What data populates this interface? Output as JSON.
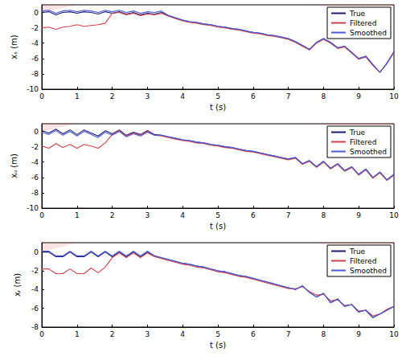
{
  "chart_data": [
    {
      "type": "line",
      "xlabel": "t (s)",
      "ylabel": "xₛ (m)",
      "legend": "upper right",
      "grid": false,
      "xlim": [
        0,
        10
      ],
      "xticks": [
        0,
        1,
        2,
        3,
        4,
        5,
        6,
        7,
        8,
        9,
        10
      ],
      "ylim": [
        -10,
        1
      ],
      "yticks": [
        -10,
        -8,
        -6,
        -4,
        -2,
        0
      ],
      "x": [
        0,
        0.2,
        0.4,
        0.6,
        0.8,
        1,
        1.2,
        1.4,
        1.6,
        1.8,
        2,
        2.2,
        2.4,
        2.6,
        2.8,
        3,
        3.2,
        3.4,
        3.6,
        3.8,
        4,
        4.2,
        4.4,
        4.6,
        4.8,
        5,
        5.2,
        5.4,
        5.6,
        5.8,
        6,
        6.2,
        6.4,
        6.6,
        6.8,
        7,
        7.2,
        7.4,
        7.6,
        7.8,
        8,
        8.2,
        8.4,
        8.6,
        8.8,
        9,
        9.2,
        9.4,
        9.6,
        9.8,
        10
      ],
      "series": [
        {
          "name": "True",
          "color": "#1a1a6e",
          "values": [
            0.0,
            0.1,
            -0.3,
            0.0,
            0.1,
            -0.1,
            0.1,
            0.0,
            -0.2,
            0.1,
            -0.1,
            0.1,
            -0.2,
            0.0,
            -0.3,
            -0.1,
            -0.2,
            0.0,
            -0.4,
            -0.7,
            -1.0,
            -1.2,
            -1.3,
            -1.5,
            -1.6,
            -1.8,
            -1.9,
            -2.1,
            -2.2,
            -2.4,
            -2.6,
            -2.7,
            -2.9,
            -3.0,
            -3.2,
            -3.4,
            -3.8,
            -4.3,
            -4.8,
            -3.9,
            -3.4,
            -3.9,
            -4.6,
            -4.4,
            -5.2,
            -6.0,
            -5.7,
            -6.8,
            -7.8,
            -6.6,
            -5.1
          ]
        },
        {
          "name": "Filtered",
          "color": "#d0404a",
          "values": [
            -2.0,
            -1.9,
            -2.2,
            -1.9,
            -1.8,
            -1.6,
            -1.8,
            -1.7,
            -1.6,
            -1.4,
            -0.1,
            0.0,
            -0.3,
            -0.1,
            -0.4,
            -0.2,
            -0.3,
            -0.1,
            -0.5,
            -0.8,
            -1.1,
            -1.3,
            -1.4,
            -1.6,
            -1.7,
            -1.9,
            -2.0,
            -2.2,
            -2.3,
            -2.5,
            -2.7,
            -2.8,
            -3.0,
            -3.1,
            -3.3,
            -3.5,
            -3.9,
            -4.4,
            -4.9,
            -4.0,
            -3.5,
            -4.0,
            -4.7,
            -4.5,
            -5.3,
            -6.1,
            -5.8,
            -6.9,
            -7.8,
            -6.7,
            -5.2
          ],
          "band": [
            0.6,
            0.6,
            0.6,
            0.6,
            0.6,
            0.6,
            0.6,
            0.6,
            0.6,
            0.6,
            0.6,
            0.6,
            0.6,
            0.6,
            0.6,
            0.6,
            0.6,
            0.6,
            0.6,
            0.6,
            0.4,
            0.4,
            0.4,
            0.4,
            0.4,
            0.4,
            0.4,
            0.4,
            0.4,
            0.4,
            0.4,
            0.4,
            0.4,
            0.4,
            0.4,
            0.4,
            0.5,
            0.5,
            0.5,
            0.5,
            0.5,
            0.5,
            0.5,
            0.5,
            0.5,
            0.5,
            0.5,
            0.5,
            0.5,
            0.5,
            0.5
          ]
        },
        {
          "name": "Smoothed",
          "color": "#4a5ad8",
          "values": [
            0.2,
            0.3,
            -0.1,
            0.2,
            0.3,
            0.1,
            0.3,
            0.2,
            0.0,
            0.3,
            0.1,
            0.3,
            0.0,
            0.2,
            -0.1,
            0.1,
            0.0,
            0.2,
            -0.4,
            -0.7,
            -1.0,
            -1.2,
            -1.3,
            -1.5,
            -1.6,
            -1.8,
            -1.9,
            -2.1,
            -2.2,
            -2.4,
            -2.6,
            -2.7,
            -2.9,
            -3.0,
            -3.2,
            -3.4,
            -3.8,
            -4.3,
            -4.8,
            -3.9,
            -3.4,
            -3.9,
            -4.6,
            -4.4,
            -5.2,
            -6.0,
            -5.7,
            -6.8,
            -7.8,
            -6.6,
            -5.1
          ]
        }
      ]
    },
    {
      "type": "line",
      "xlabel": "t (s)",
      "ylabel": "xᵤ (m)",
      "legend": "upper right",
      "grid": false,
      "xlim": [
        0,
        10
      ],
      "xticks": [
        0,
        1,
        2,
        3,
        4,
        5,
        6,
        7,
        8,
        9,
        10
      ],
      "ylim": [
        -10,
        1
      ],
      "yticks": [
        -10,
        -8,
        -6,
        -4,
        -2,
        0
      ],
      "x": [
        0,
        0.2,
        0.4,
        0.6,
        0.8,
        1,
        1.2,
        1.4,
        1.6,
        1.8,
        2,
        2.2,
        2.4,
        2.6,
        2.8,
        3,
        3.2,
        3.4,
        3.6,
        3.8,
        4,
        4.2,
        4.4,
        4.6,
        4.8,
        5,
        5.2,
        5.4,
        5.6,
        5.8,
        6,
        6.2,
        6.4,
        6.6,
        6.8,
        7,
        7.2,
        7.4,
        7.6,
        7.8,
        8,
        8.2,
        8.4,
        8.6,
        8.8,
        9,
        9.2,
        9.4,
        9.6,
        9.8,
        10
      ],
      "series": [
        {
          "name": "True",
          "color": "#1a1a6e",
          "values": [
            0.1,
            -0.2,
            0.3,
            -0.3,
            0.2,
            -0.4,
            0.2,
            -0.2,
            -0.6,
            0.1,
            -0.3,
            0.2,
            -0.5,
            -0.1,
            -0.4,
            0.1,
            -0.4,
            -0.5,
            -0.7,
            -0.9,
            -1.1,
            -1.2,
            -1.4,
            -1.5,
            -1.7,
            -1.8,
            -2.0,
            -2.1,
            -2.3,
            -2.5,
            -2.6,
            -2.8,
            -3.0,
            -3.2,
            -3.4,
            -3.6,
            -3.4,
            -4.2,
            -3.8,
            -4.6,
            -3.9,
            -4.8,
            -4.2,
            -5.1,
            -4.6,
            -5.6,
            -4.9,
            -6.0,
            -5.3,
            -6.3,
            -5.6
          ]
        },
        {
          "name": "Filtered",
          "color": "#d0404a",
          "values": [
            -1.9,
            -2.2,
            -1.6,
            -2.1,
            -1.7,
            -2.2,
            -1.7,
            -1.9,
            -2.2,
            -1.5,
            -0.4,
            0.1,
            -0.6,
            -0.2,
            -0.5,
            0.0,
            -0.5,
            -0.6,
            -0.8,
            -1.0,
            -1.2,
            -1.3,
            -1.5,
            -1.6,
            -1.8,
            -1.9,
            -2.1,
            -2.2,
            -2.4,
            -2.6,
            -2.7,
            -2.9,
            -3.1,
            -3.3,
            -3.5,
            -3.7,
            -3.5,
            -4.3,
            -3.9,
            -4.7,
            -4.0,
            -4.9,
            -4.3,
            -5.2,
            -4.7,
            -5.7,
            -5.0,
            -6.1,
            -5.4,
            -6.4,
            -5.7
          ],
          "band": [
            0.6,
            0.6,
            0.6,
            0.6,
            0.6,
            0.6,
            0.6,
            0.6,
            0.6,
            0.6,
            0.6,
            0.6,
            0.6,
            0.6,
            0.6,
            0.6,
            0.6,
            0.6,
            0.6,
            0.6,
            0.4,
            0.4,
            0.4,
            0.4,
            0.4,
            0.4,
            0.4,
            0.4,
            0.4,
            0.4,
            0.4,
            0.4,
            0.4,
            0.4,
            0.4,
            0.4,
            0.5,
            0.5,
            0.5,
            0.5,
            0.5,
            0.5,
            0.5,
            0.5,
            0.5,
            0.5,
            0.5,
            0.5,
            0.5,
            0.5,
            0.5
          ]
        },
        {
          "name": "Smoothed",
          "color": "#4a5ad8",
          "values": [
            -0.1,
            -0.4,
            0.1,
            -0.5,
            0.0,
            -0.6,
            0.0,
            -0.4,
            -0.8,
            -0.1,
            -0.5,
            0.0,
            -0.7,
            -0.3,
            -0.6,
            -0.1,
            -0.5,
            -0.5,
            -0.7,
            -0.9,
            -1.1,
            -1.2,
            -1.4,
            -1.5,
            -1.7,
            -1.8,
            -2.0,
            -2.1,
            -2.3,
            -2.5,
            -2.6,
            -2.8,
            -3.0,
            -3.2,
            -3.4,
            -3.6,
            -3.4,
            -4.2,
            -3.8,
            -4.6,
            -3.9,
            -4.8,
            -4.2,
            -5.1,
            -4.6,
            -5.6,
            -4.9,
            -6.0,
            -5.3,
            -6.3,
            -5.6
          ]
        }
      ]
    },
    {
      "type": "line",
      "xlabel": "t (s)",
      "ylabel": "xᵣ (m)",
      "legend": "upper right",
      "grid": false,
      "xlim": [
        0,
        10
      ],
      "xticks": [
        0,
        1,
        2,
        3,
        4,
        5,
        6,
        7,
        8,
        9,
        10
      ],
      "ylim": [
        -8,
        1
      ],
      "yticks": [
        -8,
        -6,
        -4,
        -2,
        0
      ],
      "x": [
        0,
        0.2,
        0.4,
        0.6,
        0.8,
        1,
        1.2,
        1.4,
        1.6,
        1.8,
        2,
        2.2,
        2.4,
        2.6,
        2.8,
        3,
        3.2,
        3.4,
        3.6,
        3.8,
        4,
        4.2,
        4.4,
        4.6,
        4.8,
        5,
        5.2,
        5.4,
        5.6,
        5.8,
        6,
        6.2,
        6.4,
        6.6,
        6.8,
        7,
        7.2,
        7.4,
        7.6,
        7.8,
        8,
        8.2,
        8.4,
        8.6,
        8.8,
        9,
        9.2,
        9.4,
        9.6,
        9.8,
        10
      ],
      "series": [
        {
          "name": "True",
          "color": "#1a1a6e",
          "values": [
            0.0,
            0.0,
            -0.5,
            -0.5,
            0.0,
            -0.5,
            -0.5,
            0.0,
            -0.5,
            0.0,
            -0.5,
            0.0,
            -0.5,
            0.0,
            -0.5,
            0.0,
            -0.4,
            -0.6,
            -0.8,
            -1.0,
            -1.2,
            -1.3,
            -1.5,
            -1.6,
            -1.8,
            -2.0,
            -2.1,
            -2.3,
            -2.5,
            -2.6,
            -2.8,
            -3.0,
            -3.2,
            -3.4,
            -3.6,
            -3.8,
            -4.0,
            -3.6,
            -4.3,
            -4.8,
            -4.4,
            -5.4,
            -5.0,
            -5.8,
            -5.6,
            -6.4,
            -6.2,
            -7.0,
            -6.6,
            -6.2,
            -5.8
          ]
        },
        {
          "name": "Filtered",
          "color": "#d0404a",
          "values": [
            -1.8,
            -1.8,
            -2.3,
            -2.3,
            -1.8,
            -2.3,
            -2.3,
            -1.7,
            -2.2,
            -1.6,
            -0.6,
            -0.1,
            -0.6,
            -0.1,
            -0.6,
            -0.1,
            -0.5,
            -0.7,
            -0.9,
            -1.1,
            -1.3,
            -1.4,
            -1.6,
            -1.7,
            -1.9,
            -2.1,
            -2.2,
            -2.4,
            -2.6,
            -2.7,
            -2.9,
            -3.1,
            -3.3,
            -3.5,
            -3.7,
            -3.9,
            -3.9,
            -3.7,
            -4.2,
            -4.6,
            -4.5,
            -5.2,
            -5.1,
            -5.7,
            -5.6,
            -6.3,
            -6.2,
            -6.8,
            -6.6,
            -6.1,
            -5.8
          ],
          "band": [
            0.6,
            0.6,
            0.6,
            0.6,
            0.6,
            0.6,
            0.6,
            0.6,
            0.6,
            0.6,
            0.6,
            0.6,
            0.6,
            0.6,
            0.6,
            0.6,
            0.6,
            0.6,
            0.6,
            0.6,
            0.4,
            0.4,
            0.4,
            0.4,
            0.4,
            0.4,
            0.4,
            0.4,
            0.4,
            0.4,
            0.4,
            0.4,
            0.4,
            0.4,
            0.4,
            0.4,
            0.5,
            0.5,
            0.5,
            0.5,
            0.5,
            0.5,
            0.5,
            0.5,
            0.5,
            0.5,
            0.5,
            0.5,
            0.5,
            0.5,
            0.5
          ]
        },
        {
          "name": "Smoothed",
          "color": "#4a5ad8",
          "values": [
            0.1,
            0.1,
            -0.4,
            -0.4,
            0.1,
            -0.4,
            -0.4,
            0.1,
            -0.4,
            0.1,
            -0.4,
            0.1,
            -0.4,
            0.1,
            -0.4,
            0.1,
            -0.4,
            -0.6,
            -0.8,
            -1.0,
            -1.2,
            -1.3,
            -1.5,
            -1.6,
            -1.8,
            -2.0,
            -2.1,
            -2.3,
            -2.5,
            -2.6,
            -2.8,
            -3.0,
            -3.2,
            -3.4,
            -3.6,
            -3.8,
            -4.0,
            -3.6,
            -4.3,
            -4.8,
            -4.4,
            -5.4,
            -5.0,
            -5.8,
            -5.6,
            -6.4,
            -6.2,
            -7.0,
            -6.6,
            -6.2,
            -5.8
          ]
        }
      ]
    }
  ]
}
